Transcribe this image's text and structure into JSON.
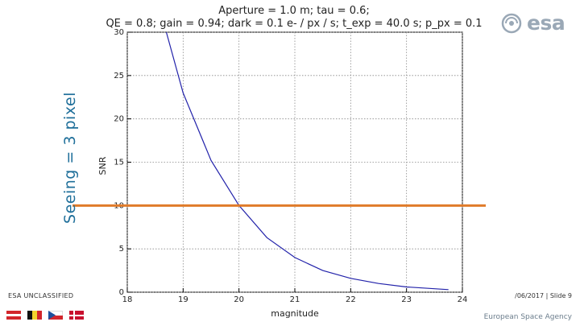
{
  "slide": {
    "side_title": "Seeing = 3 pixel",
    "classification": "ESA UNCLASSIFIED",
    "slide_info": "/06/2017 | Slide  9",
    "agency": "European Space Agency",
    "logo_text": "esa"
  },
  "chart_data": {
    "type": "line",
    "title_line1": "Aperture = 1.0 m; tau = 0.6;",
    "title_line2": "QE = 0.8; gain = 0.94; dark = 0.1 e- / px / s; t_exp = 40.0 s; p_px = 0.1",
    "xlabel": "magnitude",
    "ylabel": "SNR",
    "xlim": [
      18,
      24
    ],
    "ylim": [
      0,
      30
    ],
    "xticks": [
      "18",
      "19",
      "20",
      "21",
      "22",
      "23",
      "24"
    ],
    "yticks": [
      "0",
      "5",
      "10",
      "15",
      "20",
      "25",
      "30"
    ],
    "grid": true,
    "series": [
      {
        "color": "#2222aa",
        "x": [
          18.7,
          19.0,
          19.5,
          20.0,
          20.5,
          21.0,
          21.5,
          22.0,
          22.5,
          23.0,
          23.5,
          23.75
        ],
        "y": [
          30.0,
          23.0,
          15.2,
          10.0,
          6.3,
          4.0,
          2.5,
          1.6,
          1.0,
          0.6,
          0.4,
          0.3
        ]
      }
    ],
    "threshold": {
      "y": 10,
      "color": "#e07b2a"
    }
  },
  "colors": {
    "title_blue": "#1f6f9a",
    "curve": "#2222aa",
    "threshold": "#e07b2a"
  }
}
